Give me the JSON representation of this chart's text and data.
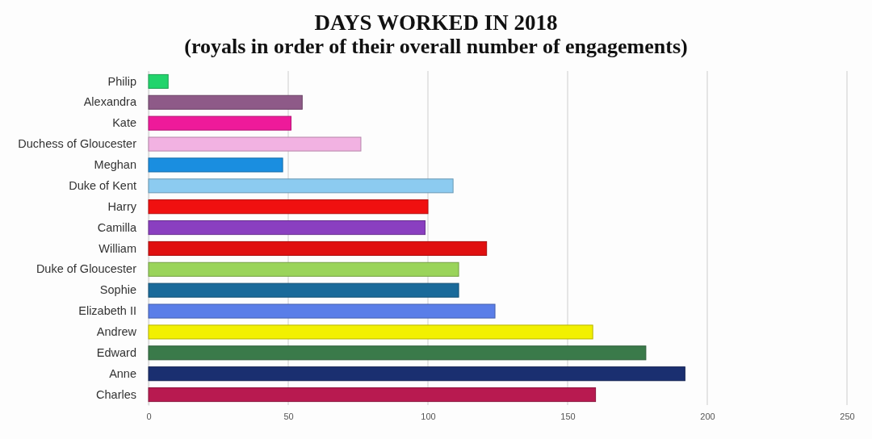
{
  "chart_data": {
    "type": "bar",
    "orientation": "horizontal",
    "title": "DAYS WORKED IN 2018",
    "subtitle": "(royals in order of their overall number of engagements)",
    "categories": [
      "Philip",
      "Alexandra",
      "Kate",
      "Duchess of Gloucester",
      "Meghan",
      "Duke of Kent",
      "Harry",
      "Camilla",
      "William",
      "Duke of Gloucester",
      "Sophie",
      "Elizabeth II",
      "Andrew",
      "Edward",
      "Anne",
      "Charles"
    ],
    "values": [
      7,
      55,
      51,
      76,
      48,
      109,
      100,
      99,
      121,
      111,
      111,
      124,
      159,
      178,
      192,
      160
    ],
    "colors": [
      "#22d46c",
      "#8e5a88",
      "#ee1a9a",
      "#f2b2e2",
      "#1a8ee0",
      "#8ccbf0",
      "#f01010",
      "#8a3fc0",
      "#e01010",
      "#9ad45a",
      "#1a6a9a",
      "#5a7ee8",
      "#f2f000",
      "#3a7a4a",
      "#1a2f70",
      "#b81a50"
    ],
    "xlim": [
      0,
      250
    ],
    "xticks": [
      0,
      50,
      100,
      150,
      200,
      250
    ],
    "grid": "x"
  }
}
